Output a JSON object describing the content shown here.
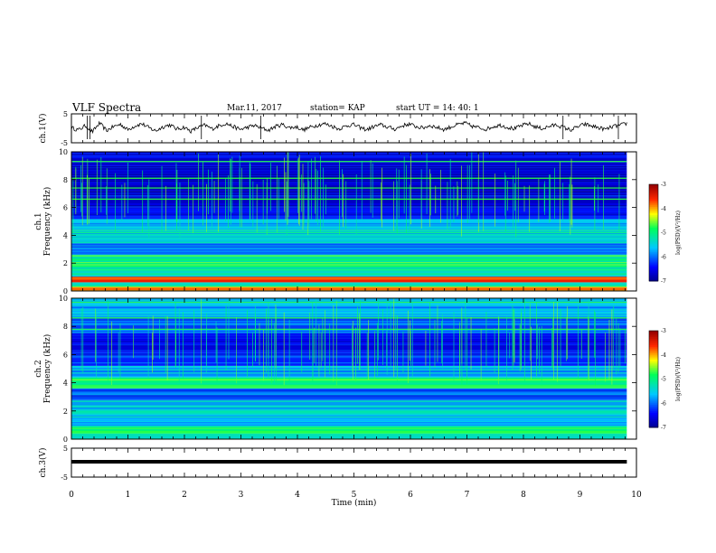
{
  "header": {
    "title": "VLF Spectra",
    "date": "Mar.11, 2017",
    "station": "station= KAP",
    "start": "start  UT =   14: 40: 1"
  },
  "chart_data": [
    {
      "type": "line",
      "panel": "ch1-waveform",
      "ylabel": "ch.1(V)",
      "ylim": [
        -5,
        5
      ],
      "yticks": [
        "5",
        "-5"
      ],
      "xlim": [
        0,
        10
      ],
      "x_extent": [
        0,
        9.83
      ],
      "grid": false,
      "series": [
        {
          "values": [
            0.2,
            -0.6,
            0.9,
            -1.2,
            1.8,
            -0.8,
            0.6,
            1.4,
            -0.5,
            0.8,
            1.6,
            0.2,
            -0.9,
            0.5,
            1.2,
            -0.3,
            0.4,
            -1.0,
            0.3,
            1.1,
            -0.2,
            0.9,
            1.7,
            0.6,
            -0.4,
            0.3,
            1.0,
            0.1,
            -0.7,
            0.6,
            1.3,
            0.2,
            0.5,
            -0.6,
            0.4,
            1.1,
            1.6,
            0.8,
            -0.2,
            0.7,
            1.4,
            0.3,
            -0.5,
            0.6,
            1.2,
            0.4,
            -0.3,
            0.8,
            1.5,
            0.6,
            0.1,
            1.0,
            0.3,
            -0.4,
            0.5,
            1.3,
            1.8,
            0.7,
            0.2,
            -0.3,
            0.6,
            1.1,
            0.4,
            -0.2,
            0.9,
            1.6,
            0.5,
            -0.1,
            0.7,
            1.2,
            0.3,
            -0.6,
            0.5,
            1.4,
            0.8,
            0.2,
            -0.4,
            0.6,
            1.0,
            1.7
          ]
        }
      ]
    },
    {
      "type": "heatmap",
      "panel": "ch1-spectrogram",
      "ylabel": "ch.1\nFrequency (kHz)",
      "ylim": [
        0,
        10
      ],
      "yticks": [
        "0",
        "2",
        "4",
        "6",
        "8",
        "10"
      ],
      "xlim": [
        0,
        10
      ],
      "x_extent": [
        0,
        9.83
      ],
      "colorbar": {
        "label": "log(PSD)(V²/Hz)",
        "range": [
          -7,
          -3
        ],
        "ticks": [
          "-3",
          "-4",
          "-5",
          "-6",
          "-7"
        ]
      },
      "bands": [
        {
          "f": [
            0,
            0.3
          ],
          "level": -3.8
        },
        {
          "f": [
            0.3,
            0.6
          ],
          "level": -5.2
        },
        {
          "f": [
            0.6,
            1.0
          ],
          "level": -3.6
        },
        {
          "f": [
            1.0,
            1.5
          ],
          "level": -5.4
        },
        {
          "f": [
            1.5,
            2.6
          ],
          "level": -5.0
        },
        {
          "f": [
            2.6,
            3.4
          ],
          "level": -6.0
        },
        {
          "f": [
            3.4,
            4.4
          ],
          "level": -5.3
        },
        {
          "f": [
            4.4,
            5.2
          ],
          "level": -5.5
        },
        {
          "f": [
            5.2,
            6.0
          ],
          "level": -6.3
        },
        {
          "f": [
            6.0,
            7.2
          ],
          "level": -6.6
        },
        {
          "f": [
            7.2,
            9.0
          ],
          "level": -6.7
        },
        {
          "f": [
            9.0,
            10.0
          ],
          "level": -6.5
        }
      ],
      "green_lines_khz": [
        6.6,
        7.4,
        8.1,
        9.3
      ]
    },
    {
      "type": "heatmap",
      "panel": "ch2-spectrogram",
      "ylabel": "ch.2\nFrequency (kHz)",
      "ylim": [
        0,
        10
      ],
      "yticks": [
        "0",
        "2",
        "4",
        "6",
        "8",
        "10"
      ],
      "xlim": [
        0,
        10
      ],
      "x_extent": [
        0,
        9.83
      ],
      "colorbar": {
        "label": "log(PSD)(V²/Hz)",
        "range": [
          -7,
          -3
        ],
        "ticks": [
          "-3",
          "-4",
          "-5",
          "-6",
          "-7"
        ]
      },
      "bands": [
        {
          "f": [
            0,
            0.4
          ],
          "level": -5.4
        },
        {
          "f": [
            0.4,
            0.9
          ],
          "level": -4.8
        },
        {
          "f": [
            0.9,
            1.6
          ],
          "level": -5.6
        },
        {
          "f": [
            1.6,
            2.8
          ],
          "level": -5.5
        },
        {
          "f": [
            2.8,
            3.6
          ],
          "level": -6.0
        },
        {
          "f": [
            3.6,
            4.4
          ],
          "level": -4.9
        },
        {
          "f": [
            4.4,
            5.2
          ],
          "level": -5.6
        },
        {
          "f": [
            5.2,
            6.2
          ],
          "level": -6.2
        },
        {
          "f": [
            6.2,
            7.5
          ],
          "level": -6.5
        },
        {
          "f": [
            7.5,
            8.6
          ],
          "level": -6.0
        },
        {
          "f": [
            8.6,
            10.0
          ],
          "level": -5.6
        }
      ],
      "green_lines_khz": [
        7.8,
        8.6,
        9.7
      ]
    },
    {
      "type": "line",
      "panel": "ch3-waveform",
      "ylabel": "ch.3(V)",
      "xlabel": "Time  (min)",
      "ylim": [
        -5,
        5
      ],
      "yticks": [
        "5",
        "-5"
      ],
      "xlim": [
        0,
        10
      ],
      "xticks": [
        "0",
        "1",
        "2",
        "3",
        "4",
        "5",
        "6",
        "7",
        "8",
        "9",
        "10"
      ],
      "x_extent": [
        0,
        9.83
      ],
      "series": [
        {
          "values": [
            0,
            0
          ]
        }
      ]
    }
  ]
}
